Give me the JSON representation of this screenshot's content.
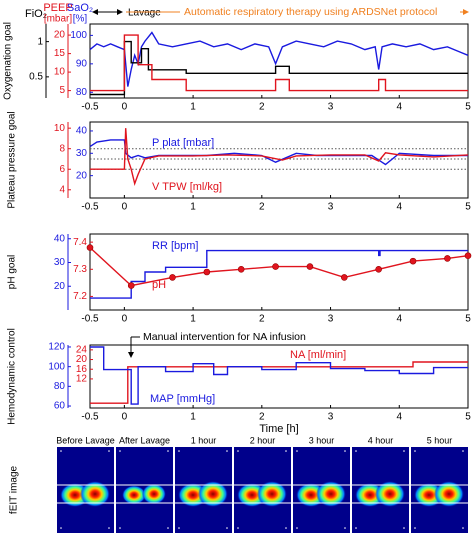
{
  "header": {
    "lavage": "Lavage",
    "protocol": "Automatic respiratory therapy using ARDSNet protocol"
  },
  "chart_data": [
    {
      "type": "line",
      "ylabel": "Oxygenation goal",
      "xlim": [
        -0.5,
        5
      ],
      "xticks": [
        -0.5,
        0,
        1,
        2,
        3,
        4,
        5
      ],
      "axes": [
        {
          "label": "FiO₂",
          "color": "#000000",
          "lim": [
            0.2,
            1.25
          ],
          "ticks": [
            0.5,
            1
          ]
        },
        {
          "label": "PEEP",
          "unit": "[mbar]",
          "color": "#e0141e",
          "lim": [
            3,
            23
          ],
          "ticks": [
            5,
            10,
            15,
            20
          ]
        },
        {
          "label": "SaO₂",
          "unit": "[%]",
          "color": "#1a1adf",
          "lim": [
            78,
            104
          ],
          "ticks": [
            80,
            90,
            100
          ]
        }
      ],
      "series": [
        {
          "axis": 2,
          "color": "#1a1adf",
          "x": [
            -0.5,
            -0.4,
            -0.3,
            -0.2,
            -0.1,
            0,
            0.05,
            0.1,
            0.15,
            0.2,
            0.25,
            0.3,
            0.4,
            0.5,
            0.7,
            0.9,
            1.1,
            1.3,
            1.5,
            1.7,
            1.9,
            2.1,
            2.2,
            2.3,
            2.5,
            2.7,
            2.9,
            3.1,
            3.3,
            3.5,
            3.65,
            3.7,
            3.75,
            3.9,
            4.1,
            4.3,
            4.5,
            4.7,
            4.9,
            5
          ],
          "values": [
            95,
            97,
            96,
            97,
            96,
            95,
            82,
            88,
            93,
            90,
            96,
            98,
            101,
            97,
            96,
            97,
            98,
            96,
            97,
            95,
            97,
            96,
            90,
            96,
            98,
            97,
            96,
            98,
            97,
            95,
            96,
            88,
            96,
            97,
            96,
            97,
            95,
            96,
            94,
            93
          ]
        },
        {
          "axis": 0,
          "color": "#000000",
          "x": [
            -0.5,
            0,
            0,
            0.1,
            0.1,
            0.25,
            0.25,
            0.35,
            0.35,
            0.9,
            0.9,
            2.2,
            2.2,
            2.4,
            2.4,
            5
          ],
          "values": [
            0.25,
            0.25,
            1,
            1,
            0.7,
            0.7,
            0.9,
            0.9,
            0.6,
            0.6,
            0.55,
            0.55,
            0.65,
            0.65,
            0.55,
            0.55
          ]
        },
        {
          "axis": 1,
          "color": "#e0141e",
          "x": [
            -0.5,
            0,
            0,
            0.2,
            0.2,
            0.4,
            0.4,
            0.9,
            0.9,
            2.2,
            2.2,
            2.4,
            2.4,
            3.7,
            3.7,
            3.8,
            3.8,
            5
          ],
          "values": [
            5,
            5,
            20,
            20,
            12,
            12,
            8,
            8,
            5,
            5,
            8,
            8,
            5,
            5,
            8,
            8,
            5,
            5
          ]
        }
      ]
    },
    {
      "type": "line",
      "ylabel": "Plateau pressure goal",
      "xlim": [
        -0.5,
        5
      ],
      "xticks": [
        -0.5,
        0,
        1,
        2,
        3,
        4,
        5
      ],
      "axes": [
        {
          "color": "#e0141e",
          "lim": [
            3.2,
            10.6
          ],
          "ticks": [
            4,
            6,
            8,
            10
          ]
        },
        {
          "color": "#1a1adf",
          "lim": [
            10,
            44
          ],
          "ticks": [
            20,
            30,
            40
          ]
        }
      ],
      "ref_axis": 0,
      "ref_lines": [
        6,
        7,
        8
      ],
      "series": [
        {
          "name": "P plat [mbar]",
          "axis": 1,
          "color": "#1a1adf",
          "x": [
            -0.5,
            -0.4,
            -0.2,
            0,
            0.02,
            0.1,
            0.2,
            0.3,
            0.5,
            0.8,
            1.2,
            1.6,
            2,
            2.2,
            2.5,
            2.8,
            3.2,
            3.6,
            3.8,
            4,
            4.5,
            5
          ],
          "values": [
            33,
            35,
            36,
            36,
            30,
            28,
            29,
            28,
            29,
            29,
            29,
            30,
            29,
            26,
            30,
            29,
            29,
            29,
            25,
            30,
            29,
            29
          ]
        },
        {
          "name": "V TPW [ml/kg]",
          "axis": 0,
          "color": "#e0141e",
          "x": [
            -0.5,
            -0.2,
            0,
            0.02,
            0.05,
            0.1,
            0.15,
            0.2,
            0.3,
            0.5,
            1,
            1.5,
            2,
            2.3,
            2.5,
            3,
            3.5,
            3.7,
            3.8,
            4,
            4.5,
            5
          ],
          "values": [
            6,
            6,
            6,
            10,
            7,
            6,
            4.6,
            5.5,
            7,
            7.3,
            7.3,
            7.4,
            7.3,
            6.9,
            7.3,
            7.4,
            7.4,
            6.8,
            7.6,
            7.4,
            7.2,
            7.4
          ]
        }
      ]
    },
    {
      "type": "line",
      "ylabel": "pH goal",
      "xlim": [
        -0.5,
        5
      ],
      "xticks": [
        -0.5,
        0,
        1,
        2,
        3,
        4,
        5
      ],
      "axes": [
        {
          "color": "#1a1adf",
          "lim": [
            10,
            42
          ],
          "ticks": [
            20,
            30,
            40
          ]
        },
        {
          "color": "#e0141e",
          "lim": [
            7.15,
            7.43
          ],
          "ticks": [
            7.2,
            7.3,
            7.4
          ]
        }
      ],
      "series": [
        {
          "name": "RR [bpm]",
          "axis": 0,
          "color": "#1a1adf",
          "x": [
            -0.5,
            0.1,
            0.1,
            0.3,
            0.3,
            0.6,
            0.6,
            1.2,
            1.2,
            3.7,
            3.7,
            3.72,
            3.72,
            5
          ],
          "values": [
            15,
            15,
            22,
            22,
            26,
            26,
            28,
            28,
            35,
            35,
            33,
            33,
            35,
            35
          ]
        },
        {
          "name": "pH",
          "axis": 1,
          "color": "#e0141e",
          "marker": true,
          "x": [
            -0.5,
            0.1,
            0.7,
            1.2,
            1.7,
            2.2,
            2.7,
            3.2,
            3.7,
            4.2,
            4.7,
            5
          ],
          "values": [
            7.38,
            7.24,
            7.27,
            7.29,
            7.3,
            7.31,
            7.31,
            7.27,
            7.3,
            7.33,
            7.34,
            7.35
          ]
        }
      ]
    },
    {
      "type": "line",
      "ylabel": "Hemodynamic control",
      "xlabel": "Time [h]",
      "annotation": "Manual intervention for NA infusion",
      "xlim": [
        -0.5,
        5
      ],
      "xticks": [
        -0.5,
        0,
        1,
        2,
        3,
        4,
        5
      ],
      "axes": [
        {
          "color": "#1a1adf",
          "lim": [
            58,
            122
          ],
          "ticks": [
            60,
            80,
            100,
            120
          ]
        },
        {
          "color": "#e0141e",
          "lim": [
            0,
            26
          ],
          "ticks": [
            12,
            16,
            20,
            24
          ]
        }
      ],
      "series": [
        {
          "name": "NA [ml/min]",
          "axis": 1,
          "color": "#e0141e",
          "x": [
            -0.5,
            0.05,
            0.05,
            4.2,
            4.2,
            5
          ],
          "values": [
            2,
            2,
            17,
            17,
            19,
            19
          ]
        },
        {
          "name": "MAP [mmHg]",
          "axis": 0,
          "color": "#1a1adf",
          "x": [
            -0.5,
            -0.3,
            -0.3,
            0.1,
            0.1,
            0.2,
            0.2,
            0.6,
            0.6,
            1,
            1,
            1.3,
            1.3,
            1.5,
            1.5,
            2,
            2,
            2.5,
            2.5,
            3,
            3,
            3.5,
            3.5,
            4,
            4,
            4.5,
            4.5,
            5
          ],
          "values": [
            120,
            120,
            97,
            97,
            62,
            62,
            100,
            100,
            95,
            95,
            103,
            103,
            92,
            92,
            100,
            100,
            97,
            97,
            104,
            104,
            98,
            98,
            96,
            96,
            93,
            93,
            99,
            99
          ]
        }
      ]
    }
  ],
  "eit": {
    "ylabel": "fEIT image",
    "labels": [
      "Before Lavage",
      "After Lavage",
      "1 hour",
      "2 hour",
      "3 hour",
      "4 hour",
      "5 hour"
    ]
  }
}
